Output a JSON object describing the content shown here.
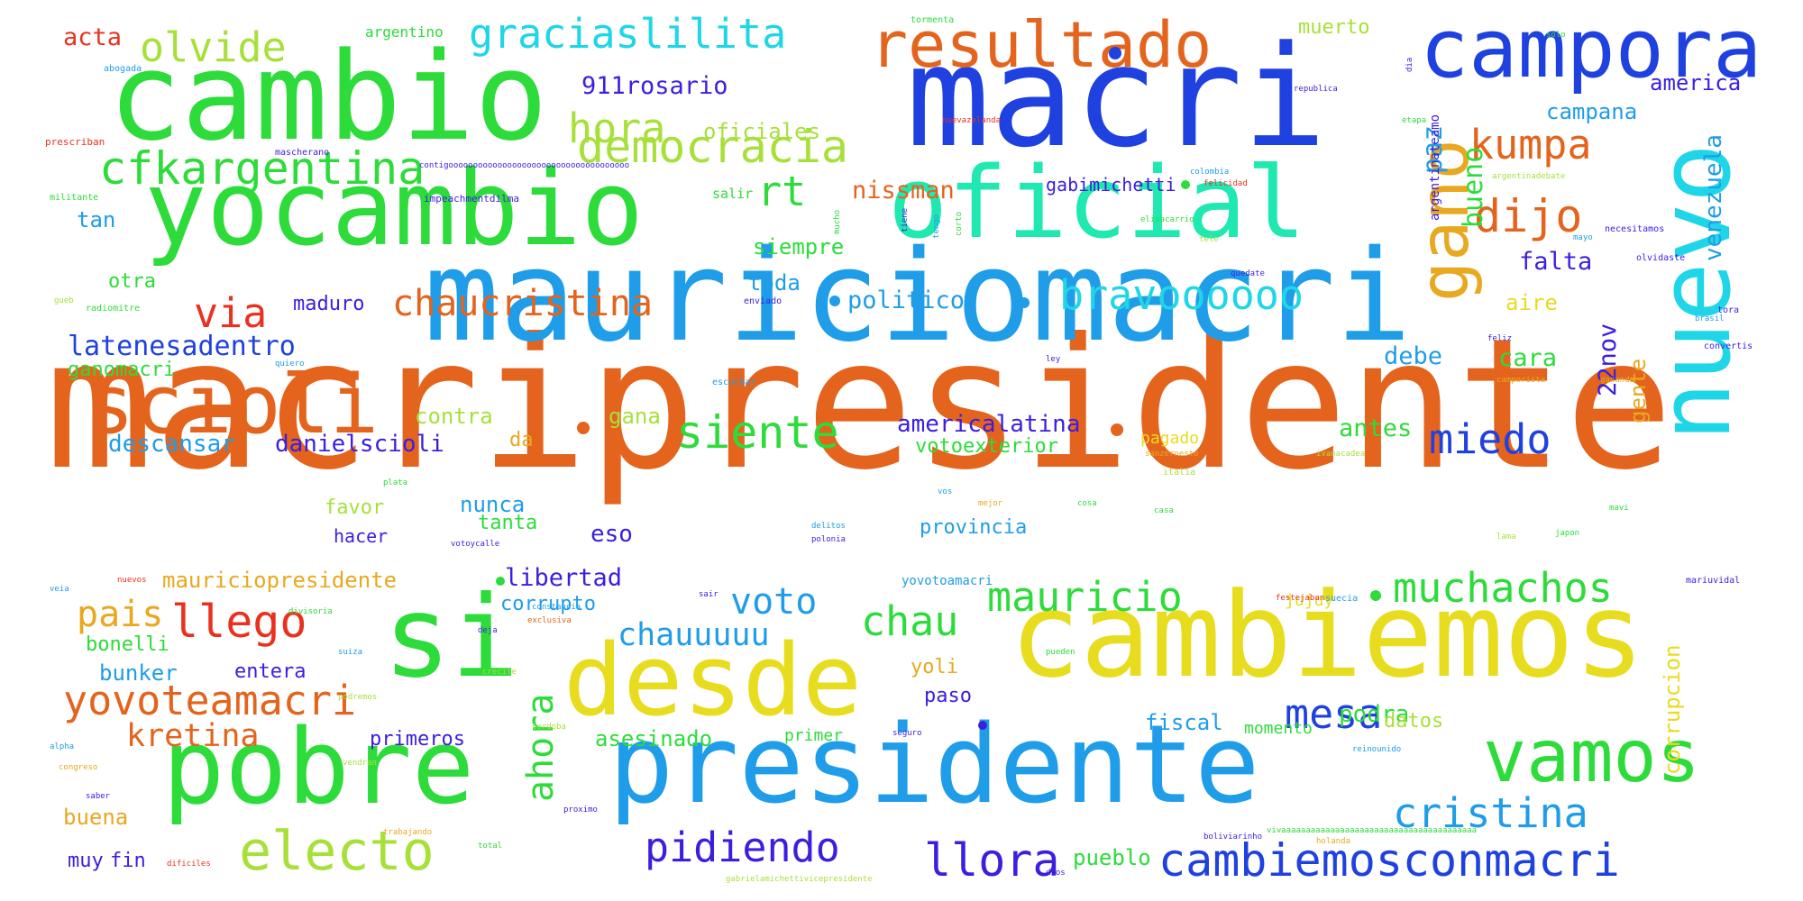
{
  "palette": {
    "orange": "#e4641d",
    "blue": "#1f41e0",
    "skyblue": "#1f9de8",
    "green": "#2ddc3a",
    "lime": "#a8e03a",
    "yellow": "#e8dc1f",
    "cyan": "#1fd6e8",
    "teal": "#1fe8b0",
    "red": "#e8321f",
    "indigo": "#3a1fe0",
    "amber": "#e8a81f"
  },
  "words": {
    "macripresidente": "macripresidente",
    "macri": "macri",
    "mauriciomacri": "mauriciomacri",
    "cambiemos": "cambiemos",
    "presidente": "presidente",
    "cambio": "cambio",
    "yocambio": "yocambio",
    "oficial": "oficial",
    "campora": "campora",
    "nuevo": "nuevo",
    "pobre": "pobre",
    "si": "si",
    "desde": "desde",
    "scioli": "scioli",
    "gano": "gano",
    "resultado": "resultado",
    "vamos": "vamos",
    "cfkargentina": "cfkargentina",
    "democracia": "democracia",
    "electo": "electo",
    "cambiemosconmacri": "cambiemosconmacri",
    "gracias_lilita": "graciaslilita",
    "olvide": "olvide",
    "hora": "hora",
    "kumpa": "kumpa",
    "dijo": "dijo",
    "rt": "rt",
    "via": "via",
    "chaucristina": "chaucristina",
    "bravoooooo": "bravoooooo",
    "latenesadentro": "latenesadentro",
    "siente": "siente",
    "miedo": "miedo",
    "muchachos": "muchachos",
    "mauricio": "mauricio",
    "voto": "voto",
    "chau": "chau",
    "llego": "llego",
    "pais": "pais",
    "yovoteamacri": "yovoteamacri",
    "mesa": "mesa",
    "cristina": "cristina",
    "pidiendo": "pidiendo",
    "llora": "llora",
    "kretina": "kretina",
    "chauuuuu": "chauuuuu",
    "ahora": "ahora",
    "acta": "acta",
    "911rosario": "911rosario",
    "oficiales": "oficiales",
    "campana": "campana",
    "america": "america",
    "paz": "paz",
    "bueno": "bueno",
    "nissman": "nissman",
    "gabimichetti": "gabimichetti",
    "tan": "tan",
    "siempre": "siempre",
    "falta": "falta",
    "venezuela": "venezuela",
    "toda": "toda",
    "otra": "otra",
    "maduro": "maduro",
    "politico": "politico",
    "aire": "aire",
    "22nov": "22nov",
    "gente": "gente",
    "debe": "debe",
    "cara": "cara",
    "ganomacri": "ganomacri",
    "contra": "contra",
    "gana": "gana",
    "americalatina": "americalatina",
    "antes": "antes",
    "descansar": "descansar",
    "danielscioli": "danielscioli",
    "da": "da",
    "votoexterior": "votoexterior",
    "pagado": "pagado",
    "favor": "favor",
    "nunca": "nunca",
    "tanta": "tanta",
    "eso": "eso",
    "hacer": "hacer",
    "provincia": "provincia",
    "mauriciopresidente": "mauriciopresidente",
    "libertad": "libertad",
    "corrupto": "corrupto",
    "bonelli": "bonelli",
    "bunker": "bunker",
    "entera": "entera",
    "yoli": "yoli",
    "corrupcion": "corrupcion",
    "paso": "paso",
    "podra": "podra",
    "datos": "datos",
    "fiscal": "fiscal",
    "primeros": "primeros",
    "asesinado": "asesinado",
    "primer": "primer",
    "buena": "buena",
    "muy": "muy",
    "fin": "fin",
    "pueblo": "pueblo",
    "muerto": "muerto",
    "argentino": "argentino",
    "tormenta": "tormenta",
    "salir": "salir",
    "momento": "momento",
    "jujuy": "jujuy",
    "yovotoamacri": "yovotoamacri",
    "argentinadebate": "argentinadebate",
    "argentinateamo": "argentinateamo",
    "militante": "militante",
    "impeachmentdilma": "impeachmentdilma",
    "nuevazelanda": "nuevazelanda",
    "republica": "republica",
    "elisacarrio": "elisacarrio",
    "felicidad": "felicidad",
    "colombia": "colombia",
    "mascherano": "mascherano",
    "prescriban": "prescriban",
    "abogada": "abogada",
    "necesitamos": "necesitamos",
    "olvidaste": "olvidaste",
    "etapa": "etapa",
    "radiomitre": "radiomitre",
    "quiero": "quiero",
    "enviado": "enviado",
    "escuchar": "escuchar",
    "convertis": "convertis",
    "camporista": "camporista",
    "sanzernesto": "sanzernesto",
    "italia": "italia",
    "tora": "tora",
    "brasil": "brasil",
    "feliz": "feliz",
    "ganando": "ganando",
    "delitos": "delitos",
    "polonia": "polonia",
    "votoycalle": "votoycalle",
    "mejor": "mejor",
    "suecia": "suecia",
    "mariuvidal": "mariuvidal",
    "japon": "japon",
    "constancia": "constancia",
    "divisoria": "divisoria",
    "suiza": "suiza",
    "exclusiva": "exclusiva",
    "pueden": "pueden",
    "reinounido": "reinounido",
    "proximo": "proximo",
    "trabajando": "trabajando",
    "boliviarinho": "boliviarinho",
    "dificiles": "dificiles",
    "total": "total",
    "gabrielamichettivicepresidente": "gabrielamichettivicepresidente",
    "dios": "dios",
    "vivaaaa": "vivaaaaaaaaaaaaaaaaaaaaaaaaaaaaaaaaaaaaaaaa",
    "holanda": "holanda",
    "nuevos": "nuevos",
    "festejaban": "festejaban",
    "podremos": "podremos",
    "cordoba": "cordoba",
    "saber": "saber",
    "vendran": "vendran",
    "alpha": "alpha",
    "congreso": "congreso",
    "cosa": "cosa",
    "deja": "deja",
    "crecite": "crecite",
    "sair": "sair",
    "veia": "veia",
    "plata": "plata",
    "ley": "ley",
    "tengo": "tengo",
    "corto": "corto",
    "mucho": "mucho",
    "tiene": "tiene",
    "alcarrio": "alcarrio",
    "tele": "tele",
    "mayo": "mayo",
    "solo": "solo",
    "dia": "dia",
    "casa": "casa",
    "mavi": "mavi",
    "lama": "lama",
    "seguro": "seguro",
    "vos": "vos",
    "contig_long": "contigooooooooooooooooooooooooooooooooooooo",
    "cristi": "cristi",
    "pilar": "pilar",
    "creo": "creo",
    "gueb": "gueb",
    "quedate": "quedate",
    "ivanacadea": "ivanacadea"
  }
}
